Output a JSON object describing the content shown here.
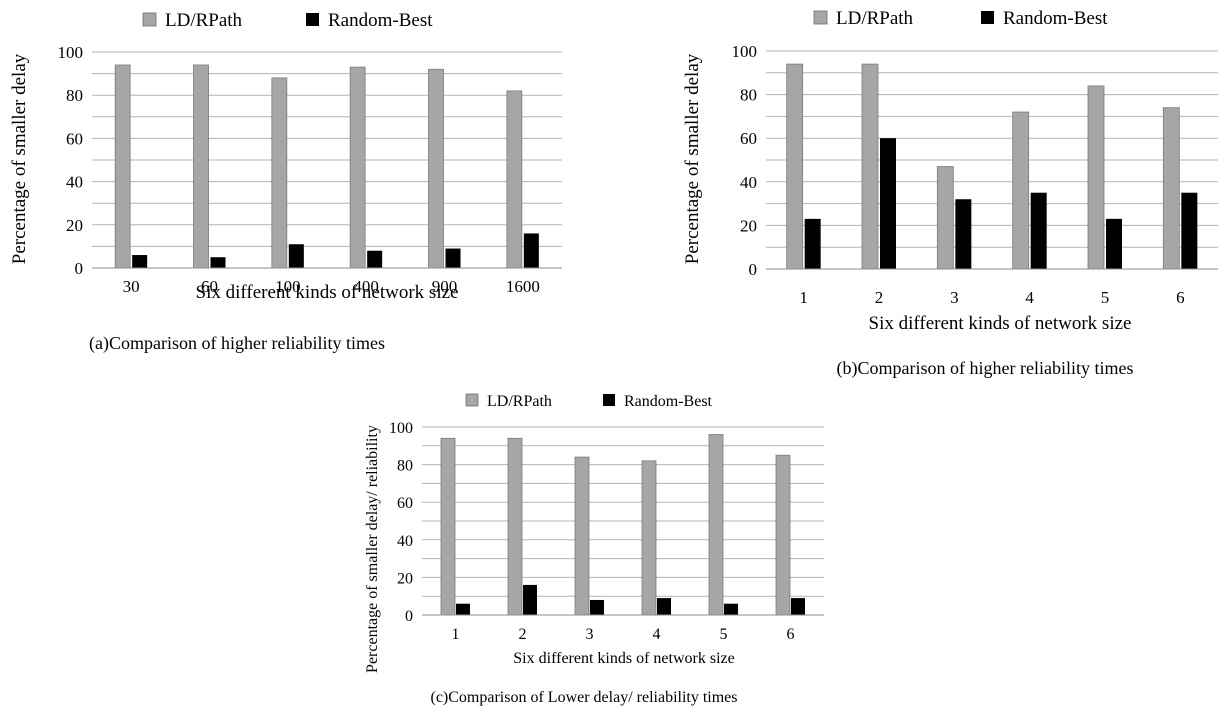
{
  "chart_data": [
    {
      "type": "bar",
      "caption": "(a)Comparison of higher reliability times",
      "xlabel": "Six different kinds of network size",
      "ylabel": "Percentage of smaller delay",
      "categories": [
        "30",
        "60",
        "100",
        "400",
        "900",
        "1600"
      ],
      "series": [
        {
          "name": "LD/RPath",
          "values": [
            94,
            94,
            88,
            93,
            92,
            82
          ]
        },
        {
          "name": "Random-Best",
          "values": [
            6,
            5,
            11,
            8,
            9,
            16
          ]
        }
      ],
      "ylim": [
        0,
        100
      ],
      "yticks": [
        "0",
        "20",
        "40",
        "60",
        "80",
        "100"
      ],
      "colors": [
        "#a6a6a6",
        "#000000"
      ],
      "grid": true,
      "legend": "top"
    },
    {
      "type": "bar",
      "caption": "(b)Comparison of higher reliability times",
      "xlabel": "Six different kinds of network size",
      "ylabel": "Percentage of smaller delay",
      "categories": [
        "1",
        "2",
        "3",
        "4",
        "5",
        "6"
      ],
      "series": [
        {
          "name": "LD/RPath",
          "values": [
            94,
            94,
            47,
            72,
            84,
            74
          ]
        },
        {
          "name": "Random-Best",
          "values": [
            23,
            60,
            32,
            35,
            23,
            35
          ]
        }
      ],
      "ylim": [
        0,
        100
      ],
      "yticks": [
        "0",
        "20",
        "40",
        "60",
        "80",
        "100"
      ],
      "colors": [
        "#a6a6a6",
        "#000000"
      ],
      "grid": true,
      "legend": "top"
    },
    {
      "type": "bar",
      "caption": "(c)Comparison of Lower delay/ reliability times",
      "xlabel": "Six different kinds of network size",
      "ylabel": "Percentage of smaller  delay/ reliability",
      "categories": [
        "1",
        "2",
        "3",
        "4",
        "5",
        "6"
      ],
      "series": [
        {
          "name": "LD/RPath",
          "values": [
            94,
            94,
            84,
            82,
            96,
            85
          ]
        },
        {
          "name": "Random-Best",
          "values": [
            6,
            16,
            8,
            9,
            6,
            9
          ]
        }
      ],
      "ylim": [
        0,
        100
      ],
      "yticks": [
        "0",
        "20",
        "40",
        "60",
        "80",
        "100"
      ],
      "colors": [
        "#a6a6a6",
        "#000000"
      ],
      "grid": true,
      "legend": "top"
    }
  ]
}
